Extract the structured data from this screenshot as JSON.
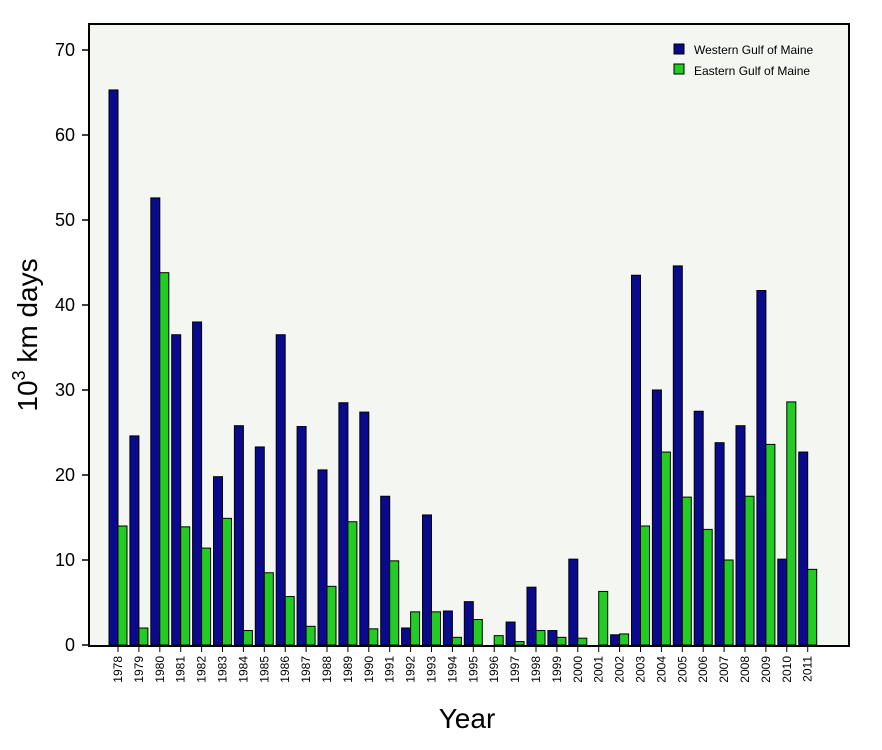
{
  "chart_data": {
    "type": "bar",
    "title": "",
    "xlabel": "Year",
    "ylabel_base": "10",
    "ylabel_exp": "3",
    "ylabel_rest": " km days",
    "ylim": [
      0,
      70
    ],
    "yticks": [
      0,
      10,
      20,
      30,
      40,
      50,
      60,
      70
    ],
    "grid": false,
    "legend_position": "top-right",
    "categories": [
      "1978",
      "1979",
      "1980",
      "1981",
      "1982",
      "1983",
      "1984",
      "1985",
      "1986",
      "1987",
      "1988",
      "1989",
      "1990",
      "1991",
      "1992",
      "1993",
      "1994",
      "1995",
      "1996",
      "1997",
      "1998",
      "1999",
      "2000",
      "2001",
      "2002",
      "2003",
      "2004",
      "2005",
      "2006",
      "2007",
      "2008",
      "2009",
      "2010",
      "2011"
    ],
    "series": [
      {
        "name": "Western Gulf of Maine",
        "color": "#0a0a8c",
        "values": [
          65.3,
          24.6,
          52.6,
          36.5,
          38.0,
          19.8,
          25.8,
          23.3,
          36.5,
          25.7,
          20.6,
          28.5,
          27.4,
          17.5,
          2.0,
          15.3,
          4.0,
          5.1,
          0,
          2.7,
          6.8,
          1.7,
          10.1,
          0,
          1.2,
          43.5,
          30.0,
          44.6,
          27.5,
          23.8,
          25.8,
          41.7,
          10.1,
          22.7
        ]
      },
      {
        "name": "Eastern Gulf of Maine",
        "color": "#22cc22",
        "values": [
          14.0,
          2.0,
          43.8,
          13.9,
          11.4,
          14.9,
          1.7,
          8.5,
          5.7,
          2.2,
          6.9,
          14.5,
          1.9,
          9.9,
          3.9,
          3.9,
          0.9,
          3.0,
          1.1,
          0.4,
          1.7,
          0.9,
          0.8,
          6.3,
          1.3,
          14.0,
          22.7,
          17.4,
          13.6,
          10.0,
          17.5,
          23.6,
          28.6,
          8.9
        ]
      }
    ]
  }
}
